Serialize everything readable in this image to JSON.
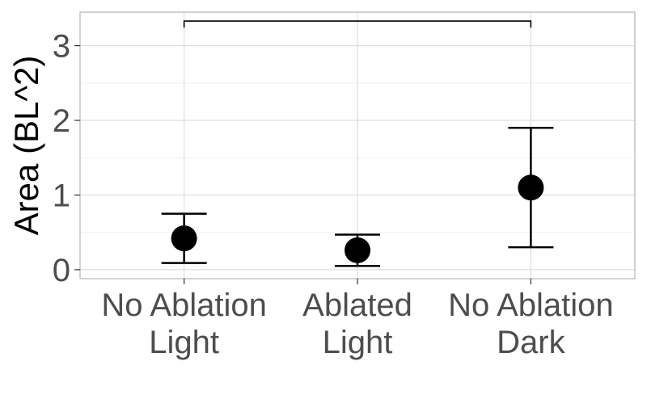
{
  "chart_data": {
    "type": "scatter",
    "title": "",
    "xlabel": "",
    "ylabel": "Area (BL^2)",
    "categories": [
      {
        "line1": "No Ablation",
        "line2": "Light"
      },
      {
        "line1": "Ablated",
        "line2": "Light"
      },
      {
        "line1": "No Ablation",
        "line2": "Dark"
      }
    ],
    "series": [
      {
        "values": [
          0.42,
          0.26,
          1.1
        ],
        "error_low": [
          0.09,
          0.05,
          0.3
        ],
        "error_high": [
          0.75,
          0.47,
          1.9
        ]
      }
    ],
    "ylim": [
      -0.12,
      3.45
    ],
    "yticks": [
      0,
      1,
      2,
      3
    ],
    "ytick_labels": [
      "0",
      "1",
      "2",
      "3"
    ],
    "grid": true,
    "legend": "none",
    "significance_bracket": {
      "from_category": 0,
      "to_category": 2,
      "y": 3.33,
      "label": ""
    },
    "colors": {
      "point": "#000000",
      "grid_major": "#dedede",
      "grid_minor": "#efefef",
      "panel_border": "#b3b3b3",
      "tick_text": "#4d4d4d"
    }
  }
}
